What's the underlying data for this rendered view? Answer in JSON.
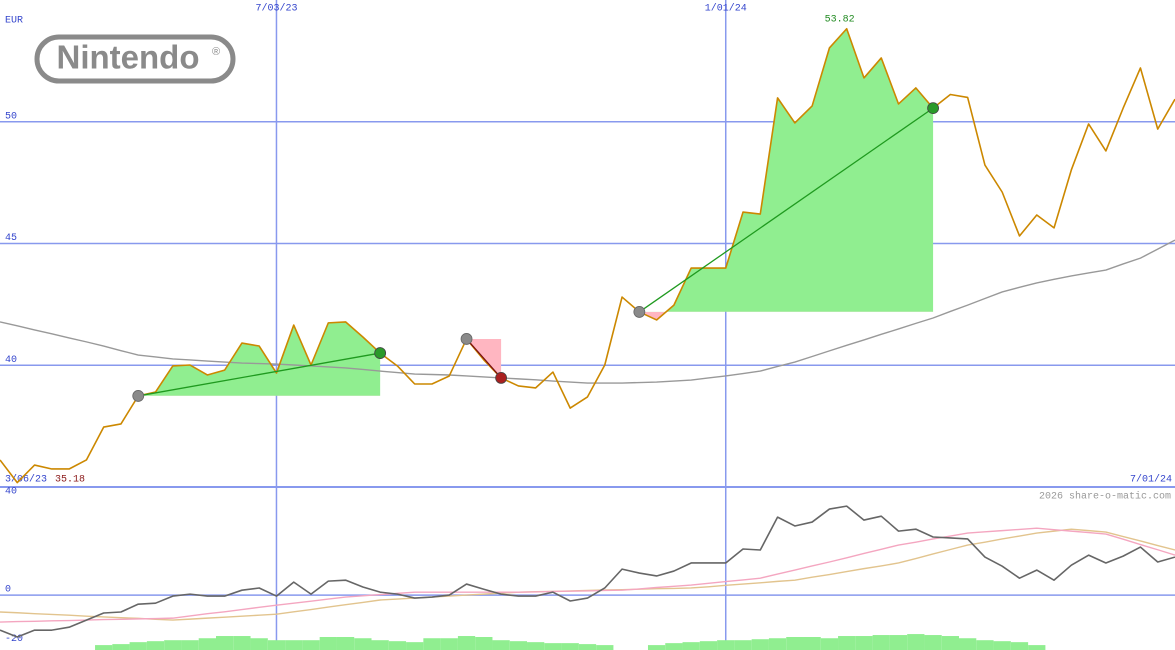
{
  "logo": {
    "name": "Nintendo",
    "mark": "®"
  },
  "chart_data": [
    {
      "type": "line",
      "y_label": "EUR",
      "watermark": "2026 share-o-matic.com",
      "categories": [
        "3/06/23",
        null,
        null,
        null,
        null,
        null,
        null,
        null,
        null,
        null,
        null,
        null,
        null,
        null,
        null,
        null,
        "7/03/23",
        null,
        null,
        null,
        null,
        null,
        null,
        null,
        null,
        null,
        null,
        null,
        null,
        null,
        null,
        null,
        null,
        null,
        null,
        null,
        null,
        null,
        null,
        null,
        null,
        null,
        "1/01/24",
        null,
        null,
        null,
        null,
        null,
        null,
        null,
        null,
        null,
        null,
        null,
        null,
        null,
        null,
        null,
        null,
        null,
        null,
        null,
        null,
        null,
        null,
        null,
        null,
        null,
        "7/01/24"
      ],
      "series": [
        {
          "color": "#999999",
          "values": [
            41.78,
            41.62,
            41.45,
            41.29,
            41.12,
            40.96,
            40.79,
            40.6,
            40.42,
            40.34,
            40.26,
            40.22,
            40.17,
            40.13,
            40.09,
            40.07,
            40.05,
            40.01,
            39.97,
            39.93,
            39.89,
            39.83,
            39.76,
            39.7,
            39.64,
            39.62,
            39.6,
            39.56,
            39.52,
            39.48,
            39.44,
            39.4,
            39.35,
            39.31,
            39.27,
            39.27,
            39.27,
            39.29,
            39.31,
            39.35,
            39.39,
            39.48,
            39.56,
            39.66,
            39.76,
            39.95,
            40.13,
            40.36,
            40.59,
            40.82,
            41.04,
            41.27,
            41.49,
            41.72,
            41.94,
            42.21,
            42.47,
            42.74,
            43.01,
            43.2,
            43.38,
            43.53,
            43.67,
            43.79,
            43.91,
            44.16,
            44.4,
            44.77,
            45.14
          ]
        },
        {
          "color": "#cc8800",
          "values": [
            36.11,
            35.18,
            35.9,
            35.74,
            35.74,
            36.11,
            37.46,
            37.59,
            38.74,
            38.9,
            39.97,
            40.01,
            39.6,
            39.8,
            40.91,
            40.79,
            39.68,
            41.65,
            40.01,
            41.74,
            41.78,
            41.16,
            40.5,
            39.97,
            39.23,
            39.23,
            39.56,
            41.08,
            40.22,
            39.48,
            39.15,
            39.07,
            39.72,
            38.24,
            38.7,
            40.01,
            42.8,
            42.19,
            41.86,
            42.47,
            43.99,
            43.99,
            43.99,
            46.29,
            46.21,
            50.98,
            49.95,
            50.65,
            53.03,
            53.82,
            51.8,
            52.62,
            50.73,
            51.39,
            50.56,
            51.12,
            51.0,
            48.22,
            47.11,
            45.31,
            46.17,
            45.64,
            48.02,
            49.91,
            48.8,
            50.56,
            52.21,
            49.7,
            50.93
          ]
        }
      ],
      "signals": [
        {
          "from": 8,
          "to": 22
        },
        {
          "from": 27,
          "to": 29
        },
        {
          "from": 37,
          "to": 54
        }
      ],
      "signal_colors": {
        "gain_fill": "#90ee90",
        "loss_fill": "#ffb6c1",
        "gain_line": "#1f9a1f",
        "loss_line": "#7a1010",
        "entry_dot": "#8a8a8a",
        "gain_dot": "#2a9a2a",
        "loss_dot": "#aa2020"
      },
      "max_color": "#228b22",
      "min_color": "#8b1a1a",
      "ylim": [
        35,
        55
      ],
      "yticks": [
        40,
        45,
        50
      ],
      "grid": true
    },
    {
      "type": "line",
      "series": [
        {
          "type": "bar",
          "color": "#90ee90",
          "values": [
            null,
            null,
            null,
            null,
            null,
            null,
            -20.4,
            -20.0,
            -19.2,
            -18.8,
            -18.4,
            -18.4,
            -17.6,
            -16.7,
            -16.7,
            -17.6,
            -18.4,
            -18.4,
            -18.4,
            -17.1,
            -17.1,
            -17.6,
            -18.4,
            -18.8,
            -19.2,
            -17.6,
            -17.6,
            -16.7,
            -17.1,
            -18.4,
            -18.8,
            -19.2,
            -19.6,
            -19.6,
            -20.0,
            -20.4,
            null,
            null,
            -20.4,
            -19.6,
            -19.2,
            -18.8,
            -18.4,
            -18.4,
            -18.0,
            -17.6,
            -17.1,
            -17.1,
            -17.6,
            -16.7,
            -16.7,
            -16.3,
            -16.3,
            -15.9,
            -16.3,
            -16.7,
            -17.6,
            -18.4,
            -18.8,
            -19.2,
            -20.4,
            null,
            null,
            null,
            null,
            null,
            null,
            null,
            null
          ]
        },
        {
          "color": "#e2c48e",
          "values": [
            -6.9,
            -7.2,
            -7.6,
            -7.9,
            -8.2,
            -8.6,
            -8.9,
            -9.2,
            -9.5,
            -9.9,
            -10.2,
            -9.8,
            -9.4,
            -9.0,
            -8.6,
            -8.2,
            -7.8,
            -6.8,
            -5.9,
            -4.9,
            -3.9,
            -3.0,
            -2.0,
            -1.6,
            -1.2,
            -0.8,
            -0.4,
            0.0,
            0.4,
            0.8,
            1.2,
            1.4,
            1.5,
            1.7,
            1.9,
            2.1,
            2.2,
            2.4,
            2.6,
            2.7,
            2.9,
            3.4,
            4.0,
            4.5,
            5.0,
            5.6,
            6.1,
            7.3,
            8.4,
            9.6,
            10.8,
            11.9,
            13.1,
            14.9,
            16.8,
            18.6,
            20.4,
            21.6,
            22.9,
            24.1,
            25.3,
            26.1,
            26.9,
            26.3,
            25.7,
            23.9,
            22.1,
            20.2,
            18.4
          ]
        },
        {
          "color": "#f4a6c0",
          "values": [
            -11.0,
            -10.8,
            -10.7,
            -10.5,
            -10.4,
            -10.2,
            -10.0,
            -9.9,
            -9.7,
            -9.6,
            -9.4,
            -8.5,
            -7.6,
            -6.8,
            -5.9,
            -5.0,
            -4.1,
            -3.3,
            -2.5,
            -1.6,
            -0.8,
            -0.3,
            0.2,
            0.7,
            1.2,
            1.2,
            1.2,
            1.2,
            1.2,
            1.2,
            1.2,
            1.3,
            1.5,
            1.6,
            1.7,
            1.9,
            2.0,
            2.5,
            3.1,
            3.6,
            4.1,
            4.8,
            5.5,
            6.2,
            6.9,
            8.6,
            10.2,
            11.9,
            13.5,
            15.2,
            17.0,
            18.7,
            20.4,
            21.6,
            22.9,
            24.1,
            25.3,
            25.8,
            26.3,
            26.8,
            27.3,
            26.7,
            26.1,
            25.5,
            24.9,
            22.8,
            20.6,
            18.5,
            16.3
          ]
        },
        {
          "color": "#666666",
          "values": [
            -14.3,
            -17.1,
            -14.3,
            -14.3,
            -13.1,
            -10.2,
            -7.3,
            -6.9,
            -3.7,
            -3.3,
            -0.4,
            0.4,
            -0.4,
            -0.4,
            2.0,
            2.9,
            -0.4,
            5.3,
            0.4,
            5.7,
            6.1,
            3.3,
            1.2,
            0.4,
            -1.2,
            -0.8,
            0,
            4.5,
            2.4,
            0.4,
            -0.4,
            -0.4,
            1.2,
            -2.4,
            -1.2,
            2.9,
            10.6,
            9.0,
            7.8,
            9.8,
            13.1,
            13.1,
            13.1,
            18.8,
            18.4,
            31.8,
            28.2,
            29.8,
            35.1,
            36.3,
            30.6,
            32.2,
            26.1,
            26.9,
            23.7,
            23.3,
            22.9,
            15.5,
            11.8,
            6.9,
            10.2,
            6.1,
            12.2,
            16.3,
            13.1,
            15.9,
            19.6,
            13.5,
            15.5
          ]
        }
      ],
      "ylim": [
        -22.4,
        44.1
      ],
      "yticks": [
        40,
        0,
        -20
      ],
      "zero_line": true
    }
  ]
}
